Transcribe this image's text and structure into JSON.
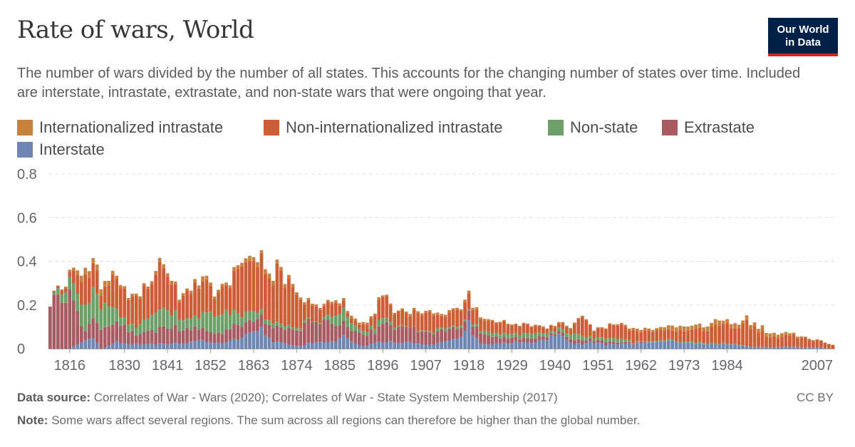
{
  "header": {
    "title": "Rate of wars, World",
    "subtitle": "The number of wars divided by the number of all states. This accounts for the changing number of states over time. Included are interstate, intrastate, extrastate, and non-state wars that were ongoing that year.",
    "logo_line1": "Our World",
    "logo_line2": "in Data"
  },
  "footer": {
    "source_label": "Data source:",
    "source_text": "Correlates of War - Wars (2020); Correlates of War - State System Membership (2017)",
    "note_label": "Note:",
    "note_text": "Some wars affect several regions. The sum across all regions can therefore be higher than the global number.",
    "license": "CC BY"
  },
  "colors": {
    "Internationalized intrastate": "#c8823f",
    "Non-internationalized intrastate": "#cd5d37",
    "Non-state": "#6d9f68",
    "Extrastate": "#a85b62",
    "Interstate": "#6d86b2"
  },
  "chart_data": {
    "type": "bar",
    "stacked": true,
    "x_start": 1816,
    "x_end": 2007,
    "x_ticks": [
      "1816",
      "1830",
      "1841",
      "1852",
      "1863",
      "1874",
      "1885",
      "1896",
      "1907",
      "1918",
      "1929",
      "1940",
      "1951",
      "1962",
      "1973",
      "1984",
      "2007"
    ],
    "y_ticks": [
      "0",
      "0.2",
      "0.4",
      "0.6",
      "0.8"
    ],
    "ylim": [
      0,
      0.8
    ],
    "grid": true,
    "legend_position": "top",
    "series": [
      {
        "name": "Interstate",
        "key_points": [
          [
            1811,
            0
          ],
          [
            1815,
            0
          ],
          [
            1816,
            0
          ],
          [
            1822,
            0.05
          ],
          [
            1824,
            0
          ],
          [
            1828,
            0.03
          ],
          [
            1831,
            0.02
          ],
          [
            1840,
            0.02
          ],
          [
            1843,
            0.03
          ],
          [
            1846,
            0.02
          ],
          [
            1848,
            0.04
          ],
          [
            1853,
            0.03
          ],
          [
            1855,
            0.02
          ],
          [
            1859,
            0.05
          ],
          [
            1863,
            0.07
          ],
          [
            1865,
            0.09
          ],
          [
            1866,
            0.07
          ],
          [
            1868,
            0.03
          ],
          [
            1872,
            0.02
          ],
          [
            1875,
            0.01
          ],
          [
            1877,
            0.03
          ],
          [
            1883,
            0.03
          ],
          [
            1886,
            0.06
          ],
          [
            1891,
            0.01
          ],
          [
            1895,
            0.03
          ],
          [
            1898,
            0.03
          ],
          [
            1901,
            0.03
          ],
          [
            1906,
            0.02
          ],
          [
            1910,
            0.02
          ],
          [
            1913,
            0.04
          ],
          [
            1917,
            0.07
          ],
          [
            1918,
            0.11
          ],
          [
            1919,
            0.07
          ],
          [
            1921,
            0.02
          ],
          [
            1925,
            0.02
          ],
          [
            1930,
            0.03
          ],
          [
            1935,
            0.03
          ],
          [
            1938,
            0.04
          ],
          [
            1940,
            0.06
          ],
          [
            1942,
            0.06
          ],
          [
            1945,
            0.02
          ],
          [
            1950,
            0.03
          ],
          [
            1953,
            0.02
          ],
          [
            1960,
            0.02
          ],
          [
            1967,
            0.04
          ],
          [
            1972,
            0.03
          ],
          [
            1978,
            0.02
          ],
          [
            1985,
            0.02
          ],
          [
            1990,
            0.01
          ],
          [
            1995,
            0.005
          ],
          [
            2000,
            0.01
          ],
          [
            2004,
            0.005
          ],
          [
            2007,
            0.005
          ],
          [
            2011,
            0
          ]
        ]
      },
      {
        "name": "Extrastate",
        "key_points": [
          [
            1811,
            0.22
          ],
          [
            1815,
            0.26
          ],
          [
            1816,
            0.26
          ],
          [
            1818,
            0.14
          ],
          [
            1820,
            0.05
          ],
          [
            1822,
            0.08
          ],
          [
            1824,
            0.1
          ],
          [
            1827,
            0.1
          ],
          [
            1830,
            0.08
          ],
          [
            1833,
            0.04
          ],
          [
            1838,
            0.06
          ],
          [
            1841,
            0.08
          ],
          [
            1845,
            0.06
          ],
          [
            1850,
            0.06
          ],
          [
            1853,
            0.04
          ],
          [
            1858,
            0.06
          ],
          [
            1863,
            0.05
          ],
          [
            1867,
            0.06
          ],
          [
            1870,
            0.07
          ],
          [
            1874,
            0.08
          ],
          [
            1878,
            0.1
          ],
          [
            1882,
            0.09
          ],
          [
            1885,
            0.07
          ],
          [
            1888,
            0.05
          ],
          [
            1891,
            0.06
          ],
          [
            1894,
            0.05
          ],
          [
            1896,
            0.09
          ],
          [
            1899,
            0.07
          ],
          [
            1902,
            0.07
          ],
          [
            1906,
            0.06
          ],
          [
            1910,
            0.05
          ],
          [
            1915,
            0.05
          ],
          [
            1918,
            0.04
          ],
          [
            1921,
            0.05
          ],
          [
            1925,
            0.03
          ],
          [
            1930,
            0.02
          ],
          [
            1935,
            0.02
          ],
          [
            1940,
            0.01
          ],
          [
            1945,
            0.02
          ],
          [
            1950,
            0.01
          ],
          [
            1955,
            0.01
          ],
          [
            1960,
            0.005
          ],
          [
            1965,
            0
          ],
          [
            2011,
            0
          ]
        ]
      },
      {
        "name": "Non-state",
        "key_points": [
          [
            1811,
            0
          ],
          [
            1815,
            0.05
          ],
          [
            1816,
            0.05
          ],
          [
            1818,
            0.1
          ],
          [
            1820,
            0.1
          ],
          [
            1822,
            0.12
          ],
          [
            1824,
            0.1
          ],
          [
            1826,
            0.1
          ],
          [
            1828,
            0.05
          ],
          [
            1830,
            0.03
          ],
          [
            1833,
            0.03
          ],
          [
            1838,
            0.08
          ],
          [
            1841,
            0.07
          ],
          [
            1845,
            0.04
          ],
          [
            1848,
            0.05
          ],
          [
            1852,
            0.09
          ],
          [
            1855,
            0.1
          ],
          [
            1858,
            0.06
          ],
          [
            1861,
            0.04
          ],
          [
            1863,
            0.04
          ],
          [
            1866,
            0.02
          ],
          [
            1869,
            0.02
          ],
          [
            1873,
            0.01
          ],
          [
            1876,
            0.01
          ],
          [
            1879,
            0
          ],
          [
            1882,
            0.02
          ],
          [
            1885,
            0.06
          ],
          [
            1887,
            0.05
          ],
          [
            1890,
            0.02
          ],
          [
            1893,
            0.02
          ],
          [
            1896,
            0.03
          ],
          [
            1899,
            0.01
          ],
          [
            1903,
            0
          ],
          [
            1910,
            0.01
          ],
          [
            1915,
            0.01
          ],
          [
            1920,
            0.01
          ],
          [
            1925,
            0.02
          ],
          [
            1930,
            0.02
          ],
          [
            1935,
            0.02
          ],
          [
            1940,
            0.01
          ],
          [
            1945,
            0.03
          ],
          [
            1950,
            0.01
          ],
          [
            1955,
            0.02
          ],
          [
            1960,
            0.005
          ],
          [
            1970,
            0.005
          ],
          [
            1980,
            0.005
          ],
          [
            1990,
            0
          ],
          [
            2000,
            0
          ],
          [
            2011,
            0
          ]
        ]
      },
      {
        "name": "Non-internationalized intrastate",
        "key_points": [
          [
            1811,
            0
          ],
          [
            1815,
            0.02
          ],
          [
            1816,
            0.02
          ],
          [
            1818,
            0.1
          ],
          [
            1820,
            0.12
          ],
          [
            1822,
            0.12
          ],
          [
            1824,
            0.08
          ],
          [
            1826,
            0.1
          ],
          [
            1828,
            0.15
          ],
          [
            1830,
            0.12
          ],
          [
            1833,
            0.14
          ],
          [
            1836,
            0.15
          ],
          [
            1839,
            0.2
          ],
          [
            1841,
            0.18
          ],
          [
            1844,
            0.1
          ],
          [
            1847,
            0.12
          ],
          [
            1850,
            0.15
          ],
          [
            1853,
            0.1
          ],
          [
            1856,
            0.12
          ],
          [
            1859,
            0.18
          ],
          [
            1862,
            0.25
          ],
          [
            1864,
            0.25
          ],
          [
            1867,
            0.2
          ],
          [
            1870,
            0.24
          ],
          [
            1873,
            0.18
          ],
          [
            1876,
            0.08
          ],
          [
            1879,
            0.06
          ],
          [
            1882,
            0.05
          ],
          [
            1884,
            0.05
          ],
          [
            1887,
            0.02
          ],
          [
            1890,
            0.02
          ],
          [
            1893,
            0.04
          ],
          [
            1896,
            0.1
          ],
          [
            1898,
            0.08
          ],
          [
            1900,
            0.06
          ],
          [
            1903,
            0.06
          ],
          [
            1906,
            0.08
          ],
          [
            1909,
            0.07
          ],
          [
            1912,
            0.05
          ],
          [
            1915,
            0.07
          ],
          [
            1918,
            0.08
          ],
          [
            1920,
            0.06
          ],
          [
            1923,
            0.05
          ],
          [
            1926,
            0.05
          ],
          [
            1929,
            0.04
          ],
          [
            1932,
            0.04
          ],
          [
            1935,
            0.03
          ],
          [
            1938,
            0.02
          ],
          [
            1941,
            0.02
          ],
          [
            1944,
            0.03
          ],
          [
            1947,
            0.08
          ],
          [
            1950,
            0.04
          ],
          [
            1953,
            0.05
          ],
          [
            1956,
            0.06
          ],
          [
            1959,
            0.05
          ],
          [
            1962,
            0.05
          ],
          [
            1965,
            0.04
          ],
          [
            1968,
            0.04
          ],
          [
            1971,
            0.05
          ],
          [
            1974,
            0.05
          ],
          [
            1977,
            0.06
          ],
          [
            1980,
            0.07
          ],
          [
            1983,
            0.08
          ],
          [
            1986,
            0.08
          ],
          [
            1989,
            0.1
          ],
          [
            1992,
            0.08
          ],
          [
            1995,
            0.05
          ],
          [
            1998,
            0.05
          ],
          [
            2001,
            0.05
          ],
          [
            2004,
            0.04
          ],
          [
            2007,
            0.03
          ],
          [
            2011,
            0.02
          ]
        ]
      },
      {
        "name": "Internationalized intrastate",
        "key_points": [
          [
            1811,
            0
          ],
          [
            1816,
            0.01
          ],
          [
            1818,
            0.02
          ],
          [
            1821,
            0.03
          ],
          [
            1824,
            0.03
          ],
          [
            1826,
            0.02
          ],
          [
            1830,
            0.01
          ],
          [
            1835,
            0.01
          ],
          [
            1840,
            0.02
          ],
          [
            1845,
            0.01
          ],
          [
            1850,
            0.02
          ],
          [
            1855,
            0.01
          ],
          [
            1860,
            0.02
          ],
          [
            1865,
            0.02
          ],
          [
            1870,
            0.02
          ],
          [
            1875,
            0.01
          ],
          [
            1880,
            0.01
          ],
          [
            1885,
            0.01
          ],
          [
            1890,
            0.01
          ],
          [
            1895,
            0.01
          ],
          [
            1900,
            0.005
          ],
          [
            1905,
            0.01
          ],
          [
            1910,
            0.01
          ],
          [
            1915,
            0.01
          ],
          [
            1920,
            0.01
          ],
          [
            1925,
            0.005
          ],
          [
            1930,
            0.005
          ],
          [
            1935,
            0.005
          ],
          [
            1940,
            0.005
          ],
          [
            1945,
            0.005
          ],
          [
            1950,
            0.005
          ],
          [
            1955,
            0.005
          ],
          [
            1960,
            0.01
          ],
          [
            1965,
            0.01
          ],
          [
            1970,
            0.02
          ],
          [
            1975,
            0.02
          ],
          [
            1980,
            0.02
          ],
          [
            1985,
            0.02
          ],
          [
            1990,
            0.02
          ],
          [
            1995,
            0.02
          ],
          [
            2000,
            0.01
          ],
          [
            2005,
            0.005
          ],
          [
            2011,
            0
          ]
        ]
      }
    ],
    "noise_amplitude": 0.4
  }
}
